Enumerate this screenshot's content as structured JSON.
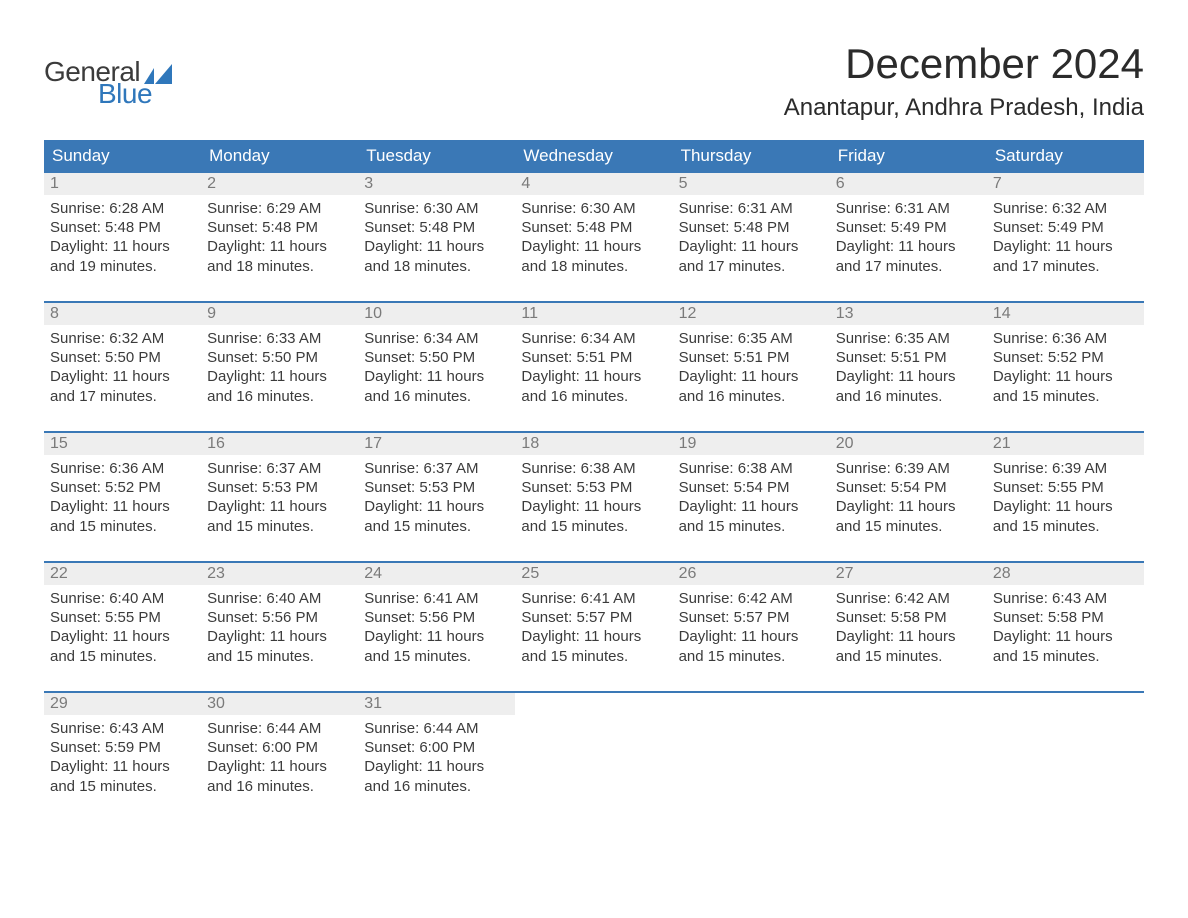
{
  "logo": {
    "text1": "General",
    "text2": "Blue",
    "flag_color": "#2f77bb"
  },
  "title": "December 2024",
  "location": "Anantapur, Andhra Pradesh, India",
  "colors": {
    "header_bg": "#3a78b6",
    "header_text": "#ffffff",
    "daynum_bg": "#eeeeee",
    "daynum_text": "#7a7a7a",
    "body_text": "#3b3b3b",
    "week_divider": "#3a78b6",
    "page_bg": "#ffffff"
  },
  "typography": {
    "title_fontsize": 42,
    "location_fontsize": 24,
    "dayhead_fontsize": 17,
    "daynum_fontsize": 16,
    "body_fontsize": 15
  },
  "day_headers": [
    "Sunday",
    "Monday",
    "Tuesday",
    "Wednesday",
    "Thursday",
    "Friday",
    "Saturday"
  ],
  "weeks": [
    [
      {
        "n": "1",
        "sunrise": "6:28 AM",
        "sunset": "5:48 PM",
        "dl1": "Daylight: 11 hours",
        "dl2": "and 19 minutes."
      },
      {
        "n": "2",
        "sunrise": "6:29 AM",
        "sunset": "5:48 PM",
        "dl1": "Daylight: 11 hours",
        "dl2": "and 18 minutes."
      },
      {
        "n": "3",
        "sunrise": "6:30 AM",
        "sunset": "5:48 PM",
        "dl1": "Daylight: 11 hours",
        "dl2": "and 18 minutes."
      },
      {
        "n": "4",
        "sunrise": "6:30 AM",
        "sunset": "5:48 PM",
        "dl1": "Daylight: 11 hours",
        "dl2": "and 18 minutes."
      },
      {
        "n": "5",
        "sunrise": "6:31 AM",
        "sunset": "5:48 PM",
        "dl1": "Daylight: 11 hours",
        "dl2": "and 17 minutes."
      },
      {
        "n": "6",
        "sunrise": "6:31 AM",
        "sunset": "5:49 PM",
        "dl1": "Daylight: 11 hours",
        "dl2": "and 17 minutes."
      },
      {
        "n": "7",
        "sunrise": "6:32 AM",
        "sunset": "5:49 PM",
        "dl1": "Daylight: 11 hours",
        "dl2": "and 17 minutes."
      }
    ],
    [
      {
        "n": "8",
        "sunrise": "6:32 AM",
        "sunset": "5:50 PM",
        "dl1": "Daylight: 11 hours",
        "dl2": "and 17 minutes."
      },
      {
        "n": "9",
        "sunrise": "6:33 AM",
        "sunset": "5:50 PM",
        "dl1": "Daylight: 11 hours",
        "dl2": "and 16 minutes."
      },
      {
        "n": "10",
        "sunrise": "6:34 AM",
        "sunset": "5:50 PM",
        "dl1": "Daylight: 11 hours",
        "dl2": "and 16 minutes."
      },
      {
        "n": "11",
        "sunrise": "6:34 AM",
        "sunset": "5:51 PM",
        "dl1": "Daylight: 11 hours",
        "dl2": "and 16 minutes."
      },
      {
        "n": "12",
        "sunrise": "6:35 AM",
        "sunset": "5:51 PM",
        "dl1": "Daylight: 11 hours",
        "dl2": "and 16 minutes."
      },
      {
        "n": "13",
        "sunrise": "6:35 AM",
        "sunset": "5:51 PM",
        "dl1": "Daylight: 11 hours",
        "dl2": "and 16 minutes."
      },
      {
        "n": "14",
        "sunrise": "6:36 AM",
        "sunset": "5:52 PM",
        "dl1": "Daylight: 11 hours",
        "dl2": "and 15 minutes."
      }
    ],
    [
      {
        "n": "15",
        "sunrise": "6:36 AM",
        "sunset": "5:52 PM",
        "dl1": "Daylight: 11 hours",
        "dl2": "and 15 minutes."
      },
      {
        "n": "16",
        "sunrise": "6:37 AM",
        "sunset": "5:53 PM",
        "dl1": "Daylight: 11 hours",
        "dl2": "and 15 minutes."
      },
      {
        "n": "17",
        "sunrise": "6:37 AM",
        "sunset": "5:53 PM",
        "dl1": "Daylight: 11 hours",
        "dl2": "and 15 minutes."
      },
      {
        "n": "18",
        "sunrise": "6:38 AM",
        "sunset": "5:53 PM",
        "dl1": "Daylight: 11 hours",
        "dl2": "and 15 minutes."
      },
      {
        "n": "19",
        "sunrise": "6:38 AM",
        "sunset": "5:54 PM",
        "dl1": "Daylight: 11 hours",
        "dl2": "and 15 minutes."
      },
      {
        "n": "20",
        "sunrise": "6:39 AM",
        "sunset": "5:54 PM",
        "dl1": "Daylight: 11 hours",
        "dl2": "and 15 minutes."
      },
      {
        "n": "21",
        "sunrise": "6:39 AM",
        "sunset": "5:55 PM",
        "dl1": "Daylight: 11 hours",
        "dl2": "and 15 minutes."
      }
    ],
    [
      {
        "n": "22",
        "sunrise": "6:40 AM",
        "sunset": "5:55 PM",
        "dl1": "Daylight: 11 hours",
        "dl2": "and 15 minutes."
      },
      {
        "n": "23",
        "sunrise": "6:40 AM",
        "sunset": "5:56 PM",
        "dl1": "Daylight: 11 hours",
        "dl2": "and 15 minutes."
      },
      {
        "n": "24",
        "sunrise": "6:41 AM",
        "sunset": "5:56 PM",
        "dl1": "Daylight: 11 hours",
        "dl2": "and 15 minutes."
      },
      {
        "n": "25",
        "sunrise": "6:41 AM",
        "sunset": "5:57 PM",
        "dl1": "Daylight: 11 hours",
        "dl2": "and 15 minutes."
      },
      {
        "n": "26",
        "sunrise": "6:42 AM",
        "sunset": "5:57 PM",
        "dl1": "Daylight: 11 hours",
        "dl2": "and 15 minutes."
      },
      {
        "n": "27",
        "sunrise": "6:42 AM",
        "sunset": "5:58 PM",
        "dl1": "Daylight: 11 hours",
        "dl2": "and 15 minutes."
      },
      {
        "n": "28",
        "sunrise": "6:43 AM",
        "sunset": "5:58 PM",
        "dl1": "Daylight: 11 hours",
        "dl2": "and 15 minutes."
      }
    ],
    [
      {
        "n": "29",
        "sunrise": "6:43 AM",
        "sunset": "5:59 PM",
        "dl1": "Daylight: 11 hours",
        "dl2": "and 15 minutes."
      },
      {
        "n": "30",
        "sunrise": "6:44 AM",
        "sunset": "6:00 PM",
        "dl1": "Daylight: 11 hours",
        "dl2": "and 16 minutes."
      },
      {
        "n": "31",
        "sunrise": "6:44 AM",
        "sunset": "6:00 PM",
        "dl1": "Daylight: 11 hours",
        "dl2": "and 16 minutes."
      },
      null,
      null,
      null,
      null
    ]
  ],
  "labels": {
    "sunrise_prefix": "Sunrise: ",
    "sunset_prefix": "Sunset: "
  }
}
